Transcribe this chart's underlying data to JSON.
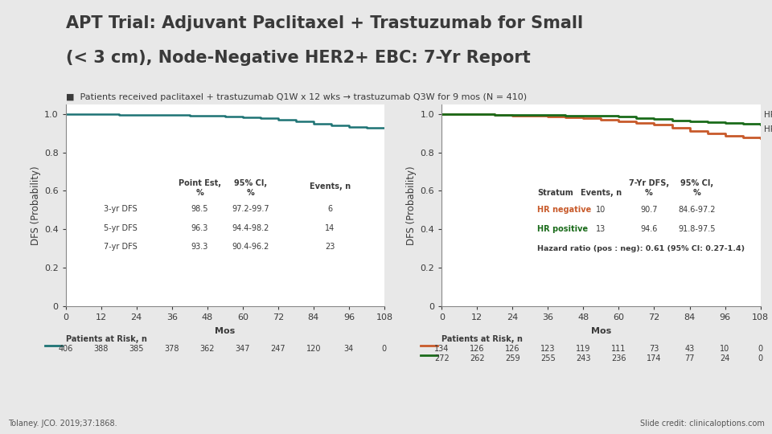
{
  "title_line1": "APT Trial: Adjuvant Paclitaxel + Trastuzumab for Small",
  "title_line2": "(< 3 cm), Node-Negative HER2+ EBC: 7-Yr Report",
  "subtitle": "■  Patients received paclitaxel + trastuzumab Q1W x 12 wks → trastuzumab Q3W for 9 mos (N = 410)",
  "bg_color": "#e8e8e8",
  "panel_bg": "#ffffff",
  "title_color": "#3a3a3a",
  "subtitle_color": "#3a3a3a",
  "teal_color": "#1d7374",
  "orange_color": "#c85a2a",
  "green_color": "#1a6b1a",
  "left_panel": {
    "ylabel": "DFS (Probability)",
    "xlabel": "Mos",
    "xticks": [
      0,
      12,
      24,
      36,
      48,
      60,
      72,
      84,
      96,
      108
    ],
    "yticks": [
      0,
      0.2,
      0.4,
      0.6,
      0.8,
      1.0
    ],
    "curve_x": [
      0,
      6,
      12,
      18,
      24,
      30,
      36,
      42,
      48,
      54,
      60,
      66,
      72,
      78,
      84,
      90,
      96,
      102,
      108
    ],
    "curve_y": [
      1.0,
      1.0,
      0.998,
      0.997,
      0.996,
      0.995,
      0.994,
      0.992,
      0.99,
      0.988,
      0.982,
      0.978,
      0.972,
      0.96,
      0.95,
      0.94,
      0.934,
      0.93,
      0.928
    ],
    "at_risk_label": "Patients at Risk, n",
    "at_risk_x": [
      0,
      12,
      24,
      36,
      48,
      60,
      72,
      84,
      96,
      108
    ],
    "at_risk_n": [
      406,
      388,
      385,
      378,
      362,
      347,
      247,
      120,
      34,
      0
    ],
    "table_header1": "Point Est,",
    "table_header2": "95% CI,",
    "table_header3": "Events, n",
    "table_col2_sub": "%",
    "table_col3_sub": "%",
    "table_rows": [
      {
        "label": "3-yr DFS",
        "est": "98.5",
        "ci": "97.2-99.7",
        "events": "6"
      },
      {
        "label": "5-yr DFS",
        "est": "96.3",
        "ci": "94.4-98.2",
        "events": "14"
      },
      {
        "label": "7-yr DFS",
        "est": "93.3",
        "ci": "90.4-96.2",
        "events": "23"
      }
    ]
  },
  "right_panel": {
    "ylabel": "DFS (Probability)",
    "xlabel": "Mos",
    "xticks": [
      0,
      12,
      24,
      36,
      48,
      60,
      72,
      84,
      96,
      108
    ],
    "yticks": [
      0,
      0.2,
      0.4,
      0.6,
      0.8,
      1.0
    ],
    "hr_neg_x": [
      0,
      6,
      12,
      18,
      24,
      30,
      36,
      42,
      48,
      54,
      60,
      66,
      72,
      78,
      84,
      90,
      96,
      102,
      108
    ],
    "hr_neg_y": [
      1.0,
      1.0,
      0.998,
      0.995,
      0.993,
      0.99,
      0.987,
      0.983,
      0.978,
      0.97,
      0.963,
      0.955,
      0.945,
      0.93,
      0.912,
      0.9,
      0.888,
      0.88,
      0.875
    ],
    "hr_pos_x": [
      0,
      6,
      12,
      18,
      24,
      30,
      36,
      42,
      48,
      54,
      60,
      66,
      72,
      78,
      84,
      90,
      96,
      102,
      108
    ],
    "hr_pos_y": [
      1.0,
      1.0,
      0.999,
      0.997,
      0.996,
      0.995,
      0.994,
      0.993,
      0.991,
      0.989,
      0.985,
      0.98,
      0.975,
      0.968,
      0.962,
      0.957,
      0.952,
      0.948,
      0.946
    ],
    "at_risk_label": "Patients at Risk, n",
    "at_risk_x": [
      0,
      12,
      24,
      36,
      48,
      60,
      72,
      84,
      96,
      108
    ],
    "at_risk_neg": [
      134,
      126,
      126,
      123,
      119,
      111,
      73,
      43,
      10,
      0
    ],
    "at_risk_pos": [
      272,
      262,
      259,
      255,
      243,
      236,
      174,
      77,
      24,
      0
    ],
    "hr_positive_label": "HR positive",
    "hr_negative_label": "HR negative",
    "table_header1": "7-Yr DFS,",
    "table_header2": "95% CI,",
    "stratum_label": "Stratum",
    "events_label": "Events, n",
    "pct_label": "%",
    "table_rows": [
      {
        "label": "HR negative",
        "events": "10",
        "est": "90.7",
        "ci": "84.6-97.2"
      },
      {
        "label": "HR positive",
        "events": "13",
        "est": "94.6",
        "ci": "91.8-97.5"
      }
    ],
    "hazard_ratio": "Hazard ratio (pos : neg): 0.61 (95% CI: 0.27-1.4)"
  },
  "footnote": "Tolaney. JCO. 2019;37:1868.",
  "slide_credit": "Slide credit: clinicaloptions.com"
}
